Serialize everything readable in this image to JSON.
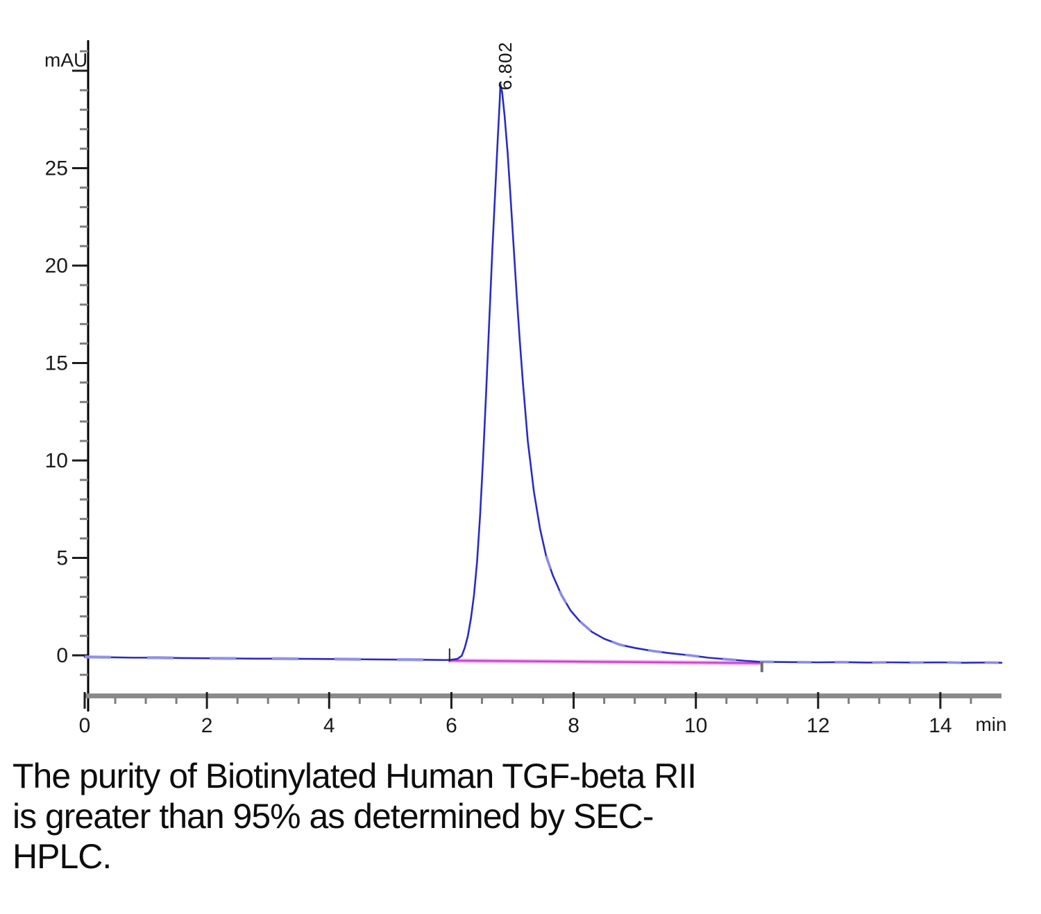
{
  "chart_data": {
    "type": "line",
    "title": "",
    "xlabel": "min",
    "ylabel": "mAU",
    "xlim": [
      0,
      15
    ],
    "ylim": [
      -2.1,
      31.5
    ],
    "x_major_ticks": [
      0,
      2,
      4,
      6,
      8,
      10,
      12,
      14
    ],
    "x_minor_tick_interval": 0.5,
    "y_major_ticks": [
      0,
      5,
      10,
      15,
      20,
      25,
      30
    ],
    "y_labeled_ticks": [
      0,
      5,
      10,
      15,
      20,
      25
    ],
    "y_minor_tick_interval": 1,
    "grid": "off",
    "legend": "none",
    "peak": {
      "label": "6.802",
      "retention_time_min": 6.802,
      "apex_mAU": 29.3,
      "integration_start_min": 5.97,
      "integration_end_min": 11.08
    },
    "series": [
      {
        "name": "uv-trace",
        "color": "#2a2ac4",
        "points": [
          [
            0,
            -0.08
          ],
          [
            0.4,
            -0.1
          ],
          [
            0.8,
            -0.12
          ],
          [
            1.2,
            -0.12
          ],
          [
            1.6,
            -0.14
          ],
          [
            2,
            -0.15
          ],
          [
            2.4,
            -0.16
          ],
          [
            2.8,
            -0.17
          ],
          [
            3.2,
            -0.17
          ],
          [
            3.6,
            -0.18
          ],
          [
            4,
            -0.19
          ],
          [
            4.4,
            -0.2
          ],
          [
            4.8,
            -0.21
          ],
          [
            5.2,
            -0.22
          ],
          [
            5.6,
            -0.23
          ],
          [
            5.9,
            -0.24
          ],
          [
            6.0,
            -0.23
          ],
          [
            6.1,
            -0.18
          ],
          [
            6.17,
            -0.02
          ],
          [
            6.22,
            0.4
          ],
          [
            6.27,
            1.0
          ],
          [
            6.32,
            1.9
          ],
          [
            6.37,
            3.1
          ],
          [
            6.42,
            4.8
          ],
          [
            6.47,
            7.2
          ],
          [
            6.52,
            10.2
          ],
          [
            6.57,
            13.6
          ],
          [
            6.62,
            17.2
          ],
          [
            6.67,
            20.8
          ],
          [
            6.72,
            24.0
          ],
          [
            6.76,
            26.6
          ],
          [
            6.79,
            28.4
          ],
          [
            6.802,
            29.3
          ],
          [
            6.83,
            28.9
          ],
          [
            6.87,
            27.7
          ],
          [
            6.92,
            25.8
          ],
          [
            6.97,
            23.4
          ],
          [
            7.02,
            20.9
          ],
          [
            7.07,
            18.4
          ],
          [
            7.12,
            16.1
          ],
          [
            7.17,
            14.0
          ],
          [
            7.25,
            11.0
          ],
          [
            7.35,
            8.4
          ],
          [
            7.45,
            6.5
          ],
          [
            7.55,
            5.1
          ],
          [
            7.66,
            4.1
          ],
          [
            7.8,
            3.1
          ],
          [
            7.95,
            2.3
          ],
          [
            8.1,
            1.75
          ],
          [
            8.3,
            1.2
          ],
          [
            8.5,
            0.85
          ],
          [
            8.75,
            0.55
          ],
          [
            9.0,
            0.38
          ],
          [
            9.3,
            0.22
          ],
          [
            9.6,
            0.1
          ],
          [
            9.9,
            0.0
          ],
          [
            10.2,
            -0.12
          ],
          [
            10.5,
            -0.2
          ],
          [
            10.8,
            -0.28
          ],
          [
            11.05,
            -0.33
          ],
          [
            11.3,
            -0.34
          ],
          [
            11.6,
            -0.35
          ],
          [
            12,
            -0.36
          ],
          [
            12.4,
            -0.35
          ],
          [
            12.8,
            -0.37
          ],
          [
            13.2,
            -0.36
          ],
          [
            13.6,
            -0.37
          ],
          [
            14,
            -0.36
          ],
          [
            14.4,
            -0.38
          ],
          [
            14.7,
            -0.37
          ],
          [
            15,
            -0.38
          ]
        ]
      },
      {
        "name": "integration-baseline",
        "color": "#cb3ecb",
        "points": [
          [
            5.95,
            -0.27
          ],
          [
            11.1,
            -0.4
          ]
        ]
      }
    ]
  },
  "labels": {
    "y_axis_unit": "mAU",
    "x_axis_unit": "min",
    "peak_label": "6.802"
  },
  "colors": {
    "trace": "#2a2ac4",
    "trace_noise": "#9a9ae8",
    "baseline": "#cb3ecb",
    "baseline_halo": "#f0b2f0",
    "y_axis": "#000000",
    "x_axis_bar": "#8a8a8a",
    "tick_major": "#1c1c1c",
    "tick_minor": "#7d7d7d",
    "tick_text": "#1a1a1a"
  },
  "caption": {
    "lines": [
      "The purity of Biotinylated Human TGF-beta RII",
      "is greater than 95% as determined by SEC-",
      "HPLC."
    ]
  }
}
